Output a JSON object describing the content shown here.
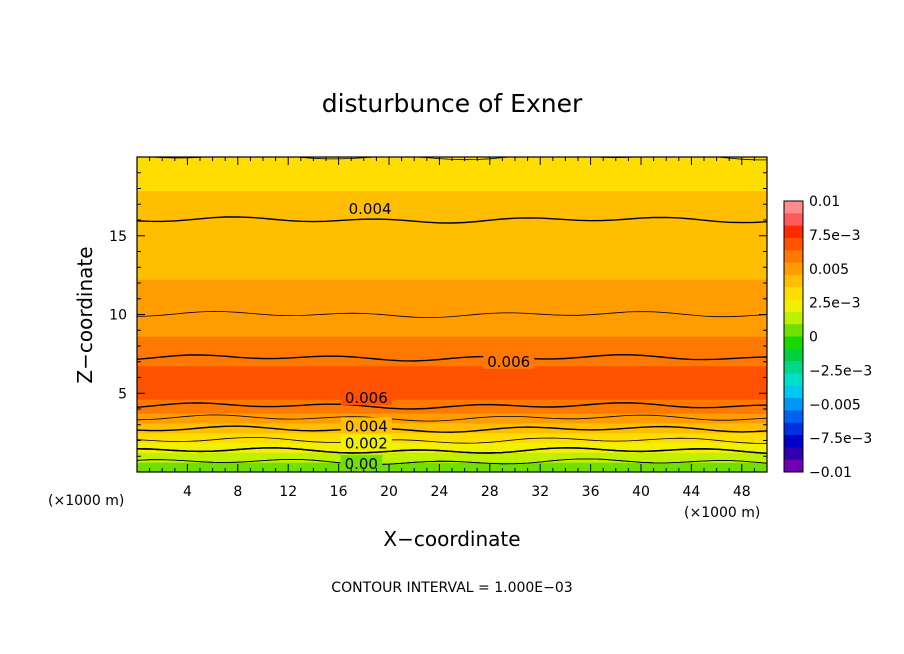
{
  "chart_data": {
    "type": "heatmap",
    "title": "disturbunce of Exner",
    "xlabel": "X−coordinate",
    "ylabel": "Z−coordinate",
    "x_unit": "(×1000 m)",
    "y_unit": "(×1000 m)",
    "xlim": [
      0,
      50
    ],
    "ylim": [
      0,
      20
    ],
    "x_ticks": [
      4,
      8,
      12,
      16,
      20,
      24,
      28,
      32,
      36,
      40,
      44,
      48
    ],
    "y_ticks": [
      5,
      10,
      15
    ],
    "contour_interval_text": "CONTOUR INTERVAL = 1.000E−03",
    "contour_interval": 0.001,
    "profile_z": [
      0.0,
      0.5,
      1.0,
      1.5,
      2.0,
      2.5,
      3.0,
      3.5,
      4.0,
      4.5,
      5.0,
      5.5,
      6.0,
      6.5,
      7.0,
      8.0,
      9.0,
      10.0,
      11.0,
      12.0,
      13.0,
      14.0,
      15.0,
      16.0,
      17.0,
      18.0,
      19.0,
      20.0
    ],
    "profile_values": [
      0.0002,
      0.0008,
      0.0015,
      0.0022,
      0.003,
      0.0037,
      0.0044,
      0.0051,
      0.0058,
      0.0063,
      0.0067,
      0.0069,
      0.0069,
      0.0066,
      0.0061,
      0.0057,
      0.0053,
      0.005,
      0.0048,
      0.0046,
      0.0044,
      0.0042,
      0.0041,
      0.004,
      0.0039,
      0.0036,
      0.0033,
      0.003
    ],
    "hotspots": [
      {
        "x": 9.6,
        "z": 5.7,
        "value": 0.0072
      },
      {
        "x": 19.6,
        "z": 5.7,
        "value": 0.0072
      }
    ],
    "contour_labels": [
      {
        "text": "0.004",
        "x": 18.5,
        "z": 16.7
      },
      {
        "text": "0.006",
        "x": 29.5,
        "z": 7.0
      },
      {
        "text": "0.006",
        "x": 18.2,
        "z": 4.7
      },
      {
        "text": "0.004",
        "x": 18.2,
        "z": 2.9
      },
      {
        "text": "0.002",
        "x": 18.2,
        "z": 1.8
      },
      {
        "text": "0.00",
        "x": 17.8,
        "z": 0.5
      }
    ],
    "colorbar": {
      "labels": [
        "0.01",
        "7.5e−3",
        "0.005",
        "2.5e−3",
        "0",
        "−2.5e−3",
        "−0.005",
        "−7.5e−3",
        "−0.01"
      ],
      "levels": [
        0.01,
        0.0075,
        0.005,
        0.0025,
        0,
        -0.0025,
        -0.005,
        -0.0075,
        -0.01
      ],
      "colors": [
        "#ff8c8c",
        "#ff5a5a",
        "#ff2a00",
        "#ff5200",
        "#ff7800",
        "#ff9c00",
        "#ffbe00",
        "#ffdd00",
        "#f0f000",
        "#bef000",
        "#70e000",
        "#18d800",
        "#00d040",
        "#00d888",
        "#00e0c8",
        "#00c8f0",
        "#0098f0",
        "#0060f0",
        "#0030e0",
        "#0000c8",
        "#3000b0",
        "#7000b0"
      ]
    }
  }
}
